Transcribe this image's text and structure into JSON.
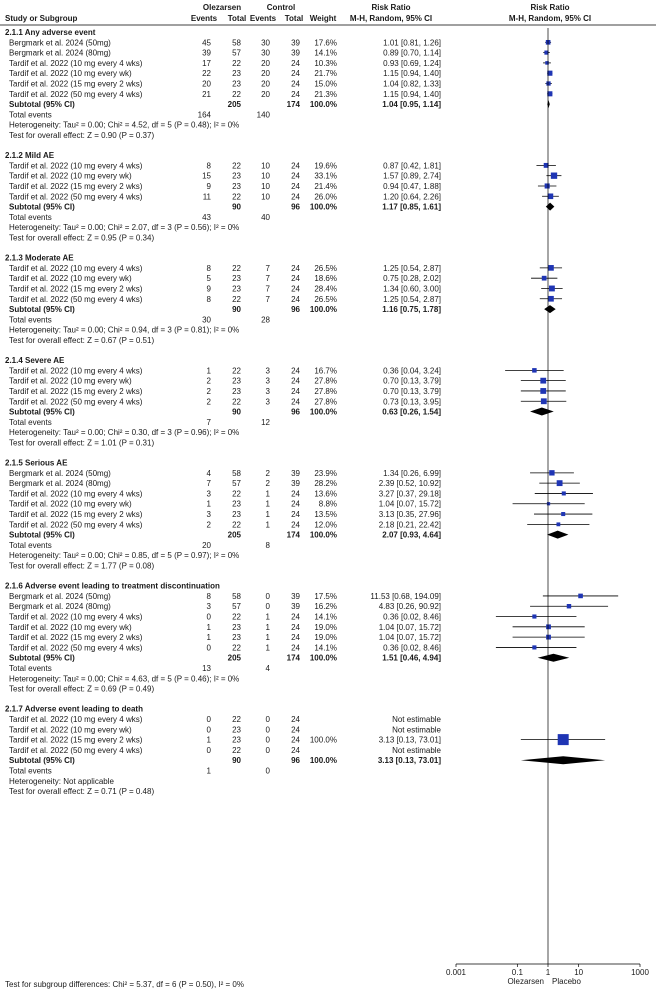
{
  "header": {
    "study_col": "Study or Subgroup",
    "group1": "Olezarsen",
    "group2": "Control",
    "events": "Events",
    "total": "Total",
    "weight": "Weight",
    "rr_title": "Risk Ratio",
    "rr_method": "M-H, Random, 95% CI",
    "plot_title": "Risk Ratio",
    "plot_method": "M-H, Random, 95% CI"
  },
  "axis": {
    "ticks": [
      {
        "value": 0.001,
        "label": "0.001"
      },
      {
        "value": 0.1,
        "label": "0.1"
      },
      {
        "value": 1,
        "label": "1"
      },
      {
        "value": 10,
        "label": "10"
      },
      {
        "value": 1000,
        "label": "1000"
      }
    ],
    "left_label": "Olezarsen",
    "right_label": "Placebo"
  },
  "labels": {
    "total_events": "Total events"
  },
  "footer": "Test for subgroup differences: Chi² = 5.37, df = 6 (P = 0.50), I² = 0%",
  "colors": {
    "marker": "#1f35b4",
    "line": "#000000"
  },
  "chart_data": {
    "type": "forest",
    "measure": "Risk Ratio (M-H, Random, 95% CI)",
    "scale": "log",
    "xlim": [
      0.001,
      1000
    ],
    "groups": [
      {
        "title": "2.1.1 Any adverse event",
        "studies": [
          {
            "name": "Bergmark et al. 2024 (50mg)",
            "e1": "45",
            "n1": "58",
            "e2": "30",
            "n2": "39",
            "weight": "17.6%",
            "ci": "1.01 [0.81, 1.26]",
            "rr": 1.01,
            "lo": 0.81,
            "hi": 1.26
          },
          {
            "name": "Bergmark et al. 2024 (80mg)",
            "e1": "39",
            "n1": "57",
            "e2": "30",
            "n2": "39",
            "weight": "14.1%",
            "ci": "0.89 [0.70, 1.14]",
            "rr": 0.89,
            "lo": 0.7,
            "hi": 1.14
          },
          {
            "name": "Tardif et al. 2022 (10 mg every 4 wks)",
            "e1": "17",
            "n1": "22",
            "e2": "20",
            "n2": "24",
            "weight": "10.3%",
            "ci": "0.93 [0.69, 1.24]",
            "rr": 0.93,
            "lo": 0.69,
            "hi": 1.24
          },
          {
            "name": "Tardif et al. 2022 (10 mg every wk)",
            "e1": "22",
            "n1": "23",
            "e2": "20",
            "n2": "24",
            "weight": "21.7%",
            "ci": "1.15 [0.94, 1.40]",
            "rr": 1.15,
            "lo": 0.94,
            "hi": 1.4
          },
          {
            "name": "Tardif et al. 2022 (15 mg every 2 wks)",
            "e1": "20",
            "n1": "23",
            "e2": "20",
            "n2": "24",
            "weight": "15.0%",
            "ci": "1.04 [0.82, 1.33]",
            "rr": 1.04,
            "lo": 0.82,
            "hi": 1.33
          },
          {
            "name": "Tardif et al. 2022 (50 mg every 4 wks)",
            "e1": "21",
            "n1": "22",
            "e2": "20",
            "n2": "24",
            "weight": "21.3%",
            "ci": "1.15 [0.94, 1.40]",
            "rr": 1.15,
            "lo": 0.94,
            "hi": 1.4
          }
        ],
        "subtotal": {
          "label": "Subtotal (95% CI)",
          "n1": "205",
          "n2": "174",
          "weight": "100.0%",
          "ci": "1.04 [0.95, 1.14]",
          "rr": 1.04,
          "lo": 0.95,
          "hi": 1.14
        },
        "total_events": [
          "164",
          "140"
        ],
        "heterogeneity": "Heterogeneity: Tau² = 0.00; Chi² = 4.52, df = 5 (P = 0.48); I² = 0%",
        "overall": "Test for overall effect: Z = 0.90 (P = 0.37)"
      },
      {
        "title": "2.1.2 Mild AE",
        "studies": [
          {
            "name": "Tardif et al. 2022 (10 mg every 4 wks)",
            "e1": "8",
            "n1": "22",
            "e2": "10",
            "n2": "24",
            "weight": "19.6%",
            "ci": "0.87 [0.42, 1.81]",
            "rr": 0.87,
            "lo": 0.42,
            "hi": 1.81
          },
          {
            "name": "Tardif et al. 2022 (10 mg every wk)",
            "e1": "15",
            "n1": "23",
            "e2": "10",
            "n2": "24",
            "weight": "33.1%",
            "ci": "1.57 [0.89, 2.74]",
            "rr": 1.57,
            "lo": 0.89,
            "hi": 2.74
          },
          {
            "name": "Tardif et al. 2022 (15 mg every 2 wks)",
            "e1": "9",
            "n1": "23",
            "e2": "10",
            "n2": "24",
            "weight": "21.4%",
            "ci": "0.94 [0.47, 1.88]",
            "rr": 0.94,
            "lo": 0.47,
            "hi": 1.88
          },
          {
            "name": "Tardif et al. 2022 (50 mg every 4 wks)",
            "e1": "11",
            "n1": "22",
            "e2": "10",
            "n2": "24",
            "weight": "26.0%",
            "ci": "1.20 [0.64, 2.26]",
            "rr": 1.2,
            "lo": 0.64,
            "hi": 2.26
          }
        ],
        "subtotal": {
          "label": "Subtotal (95% CI)",
          "n1": "90",
          "n2": "96",
          "weight": "100.0%",
          "ci": "1.17 [0.85, 1.61]",
          "rr": 1.17,
          "lo": 0.85,
          "hi": 1.61
        },
        "total_events": [
          "43",
          "40"
        ],
        "heterogeneity": "Heterogeneity: Tau² = 0.00; Chi² = 2.07, df = 3 (P = 0.56); I² = 0%",
        "overall": "Test for overall effect: Z = 0.95 (P = 0.34)"
      },
      {
        "title": "2.1.3 Moderate AE",
        "studies": [
          {
            "name": "Tardif et al. 2022 (10 mg every 4 wks)",
            "e1": "8",
            "n1": "22",
            "e2": "7",
            "n2": "24",
            "weight": "26.5%",
            "ci": "1.25 [0.54, 2.87]",
            "rr": 1.25,
            "lo": 0.54,
            "hi": 2.87
          },
          {
            "name": "Tardif et al. 2022 (10 mg every wk)",
            "e1": "5",
            "n1": "23",
            "e2": "7",
            "n2": "24",
            "weight": "18.6%",
            "ci": "0.75 [0.28, 2.02]",
            "rr": 0.75,
            "lo": 0.28,
            "hi": 2.02
          },
          {
            "name": "Tardif et al. 2022 (15 mg every 2 wks)",
            "e1": "9",
            "n1": "23",
            "e2": "7",
            "n2": "24",
            "weight": "28.4%",
            "ci": "1.34 [0.60, 3.00]",
            "rr": 1.34,
            "lo": 0.6,
            "hi": 3.0
          },
          {
            "name": "Tardif et al. 2022 (50 mg every 4 wks)",
            "e1": "8",
            "n1": "22",
            "e2": "7",
            "n2": "24",
            "weight": "26.5%",
            "ci": "1.25 [0.54, 2.87]",
            "rr": 1.25,
            "lo": 0.54,
            "hi": 2.87
          }
        ],
        "subtotal": {
          "label": "Subtotal (95% CI)",
          "n1": "90",
          "n2": "96",
          "weight": "100.0%",
          "ci": "1.16 [0.75, 1.78]",
          "rr": 1.16,
          "lo": 0.75,
          "hi": 1.78
        },
        "total_events": [
          "30",
          "28"
        ],
        "heterogeneity": "Heterogeneity: Tau² = 0.00; Chi² = 0.94, df = 3 (P = 0.81); I² = 0%",
        "overall": "Test for overall effect: Z = 0.67 (P = 0.51)"
      },
      {
        "title": "2.1.4 Severe AE",
        "studies": [
          {
            "name": "Tardif et al. 2022 (10 mg every 4 wks)",
            "e1": "1",
            "n1": "22",
            "e2": "3",
            "n2": "24",
            "weight": "16.7%",
            "ci": "0.36 [0.04, 3.24]",
            "rr": 0.36,
            "lo": 0.04,
            "hi": 3.24
          },
          {
            "name": "Tardif et al. 2022 (10 mg every wk)",
            "e1": "2",
            "n1": "23",
            "e2": "3",
            "n2": "24",
            "weight": "27.8%",
            "ci": "0.70 [0.13, 3.79]",
            "rr": 0.7,
            "lo": 0.13,
            "hi": 3.79
          },
          {
            "name": "Tardif et al. 2022 (15 mg every 2 wks)",
            "e1": "2",
            "n1": "23",
            "e2": "3",
            "n2": "24",
            "weight": "27.8%",
            "ci": "0.70 [0.13, 3.79]",
            "rr": 0.7,
            "lo": 0.13,
            "hi": 3.79
          },
          {
            "name": "Tardif et al. 2022 (50 mg every 4 wks)",
            "e1": "2",
            "n1": "22",
            "e2": "3",
            "n2": "24",
            "weight": "27.8%",
            "ci": "0.73 [0.13, 3.95]",
            "rr": 0.73,
            "lo": 0.13,
            "hi": 3.95
          }
        ],
        "subtotal": {
          "label": "Subtotal (95% CI)",
          "n1": "90",
          "n2": "96",
          "weight": "100.0%",
          "ci": "0.63 [0.26, 1.54]",
          "rr": 0.63,
          "lo": 0.26,
          "hi": 1.54
        },
        "total_events": [
          "7",
          "12"
        ],
        "heterogeneity": "Heterogeneity: Tau² = 0.00; Chi² = 0.30, df = 3 (P = 0.96); I² = 0%",
        "overall": "Test for overall effect: Z = 1.01 (P = 0.31)"
      },
      {
        "title": "2.1.5 Serious AE",
        "studies": [
          {
            "name": "Bergmark et al. 2024 (50mg)",
            "e1": "4",
            "n1": "58",
            "e2": "2",
            "n2": "39",
            "weight": "23.9%",
            "ci": "1.34 [0.26, 6.99]",
            "rr": 1.34,
            "lo": 0.26,
            "hi": 6.99
          },
          {
            "name": "Bergmark et al. 2024 (80mg)",
            "e1": "7",
            "n1": "57",
            "e2": "2",
            "n2": "39",
            "weight": "28.2%",
            "ci": "2.39 [0.52, 10.92]",
            "rr": 2.39,
            "lo": 0.52,
            "hi": 10.92
          },
          {
            "name": "Tardif et al. 2022 (10 mg every 4 wks)",
            "e1": "3",
            "n1": "22",
            "e2": "1",
            "n2": "24",
            "weight": "13.6%",
            "ci": "3.27 [0.37, 29.18]",
            "rr": 3.27,
            "lo": 0.37,
            "hi": 29.18
          },
          {
            "name": "Tardif et al. 2022 (10 mg every wk)",
            "e1": "1",
            "n1": "23",
            "e2": "1",
            "n2": "24",
            "weight": "8.8%",
            "ci": "1.04 [0.07, 15.72]",
            "rr": 1.04,
            "lo": 0.07,
            "hi": 15.72
          },
          {
            "name": "Tardif et al. 2022 (15 mg every 2 wks)",
            "e1": "3",
            "n1": "23",
            "e2": "1",
            "n2": "24",
            "weight": "13.5%",
            "ci": "3.13 [0.35, 27.96]",
            "rr": 3.13,
            "lo": 0.35,
            "hi": 27.96
          },
          {
            "name": "Tardif et al. 2022 (50 mg every 4 wks)",
            "e1": "2",
            "n1": "22",
            "e2": "1",
            "n2": "24",
            "weight": "12.0%",
            "ci": "2.18 [0.21, 22.42]",
            "rr": 2.18,
            "lo": 0.21,
            "hi": 22.42
          }
        ],
        "subtotal": {
          "label": "Subtotal (95% CI)",
          "n1": "205",
          "n2": "174",
          "weight": "100.0%",
          "ci": "2.07 [0.93, 4.64]",
          "rr": 2.07,
          "lo": 0.93,
          "hi": 4.64
        },
        "total_events": [
          "20",
          "8"
        ],
        "heterogeneity": "Heterogeneity: Tau² = 0.00; Chi² = 0.85, df = 5 (P = 0.97); I² = 0%",
        "overall": "Test for overall effect: Z = 1.77 (P = 0.08)"
      },
      {
        "title": "2.1.6 Adverse event leading to treatment discontinuation",
        "studies": [
          {
            "name": "Bergmark et al. 2024 (50mg)",
            "e1": "8",
            "n1": "58",
            "e2": "0",
            "n2": "39",
            "weight": "17.5%",
            "ci": "11.53 [0.68, 194.09]",
            "rr": 11.53,
            "lo": 0.68,
            "hi": 194.09
          },
          {
            "name": "Bergmark et al. 2024 (80mg)",
            "e1": "3",
            "n1": "57",
            "e2": "0",
            "n2": "39",
            "weight": "16.2%",
            "ci": "4.83 [0.26, 90.92]",
            "rr": 4.83,
            "lo": 0.26,
            "hi": 90.92
          },
          {
            "name": "Tardif et al. 2022 (10 mg every 4 wks)",
            "e1": "0",
            "n1": "22",
            "e2": "1",
            "n2": "24",
            "weight": "14.1%",
            "ci": "0.36 [0.02, 8.46]",
            "rr": 0.36,
            "lo": 0.02,
            "hi": 8.46
          },
          {
            "name": "Tardif et al. 2022 (10 mg every wk)",
            "e1": "1",
            "n1": "23",
            "e2": "1",
            "n2": "24",
            "weight": "19.0%",
            "ci": "1.04 [0.07, 15.72]",
            "rr": 1.04,
            "lo": 0.07,
            "hi": 15.72
          },
          {
            "name": "Tardif et al. 2022 (15 mg every 2 wks)",
            "e1": "1",
            "n1": "23",
            "e2": "1",
            "n2": "24",
            "weight": "19.0%",
            "ci": "1.04 [0.07, 15.72]",
            "rr": 1.04,
            "lo": 0.07,
            "hi": 15.72
          },
          {
            "name": "Tardif et al. 2022 (50 mg every 4 wks)",
            "e1": "0",
            "n1": "22",
            "e2": "1",
            "n2": "24",
            "weight": "14.1%",
            "ci": "0.36 [0.02, 8.46]",
            "rr": 0.36,
            "lo": 0.02,
            "hi": 8.46
          }
        ],
        "subtotal": {
          "label": "Subtotal (95% CI)",
          "n1": "205",
          "n2": "174",
          "weight": "100.0%",
          "ci": "1.51 [0.46, 4.94]",
          "rr": 1.51,
          "lo": 0.46,
          "hi": 4.94
        },
        "total_events": [
          "13",
          "4"
        ],
        "heterogeneity": "Heterogeneity: Tau² = 0.00; Chi² = 4.63, df = 5 (P = 0.46); I² = 0%",
        "overall": "Test for overall effect: Z = 0.69 (P = 0.49)"
      },
      {
        "title": "2.1.7 Adverse event leading to death",
        "studies": [
          {
            "name": "Tardif et al. 2022 (10 mg every 4 wks)",
            "e1": "0",
            "n1": "22",
            "e2": "0",
            "n2": "24",
            "weight": "",
            "ci": "Not estimable",
            "rr": null,
            "lo": null,
            "hi": null
          },
          {
            "name": "Tardif et al. 2022 (10 mg every wk)",
            "e1": "0",
            "n1": "23",
            "e2": "0",
            "n2": "24",
            "weight": "",
            "ci": "Not estimable",
            "rr": null,
            "lo": null,
            "hi": null
          },
          {
            "name": "Tardif et al. 2022 (15 mg every 2 wks)",
            "e1": "1",
            "n1": "23",
            "e2": "0",
            "n2": "24",
            "weight": "100.0%",
            "ci": "3.13 [0.13, 73.01]",
            "rr": 3.13,
            "lo": 0.13,
            "hi": 73.01
          },
          {
            "name": "Tardif et al. 2022 (50 mg every 4 wks)",
            "e1": "0",
            "n1": "22",
            "e2": "0",
            "n2": "24",
            "weight": "",
            "ci": "Not estimable",
            "rr": null,
            "lo": null,
            "hi": null
          }
        ],
        "subtotal": {
          "label": "Subtotal (95% CI)",
          "n1": "90",
          "n2": "96",
          "weight": "100.0%",
          "ci": "3.13 [0.13, 73.01]",
          "rr": 3.13,
          "lo": 0.13,
          "hi": 73.01
        },
        "total_events": [
          "1",
          "0"
        ],
        "heterogeneity": "Heterogeneity: Not applicable",
        "overall": "Test for overall effect: Z = 0.71 (P = 0.48)"
      }
    ]
  }
}
